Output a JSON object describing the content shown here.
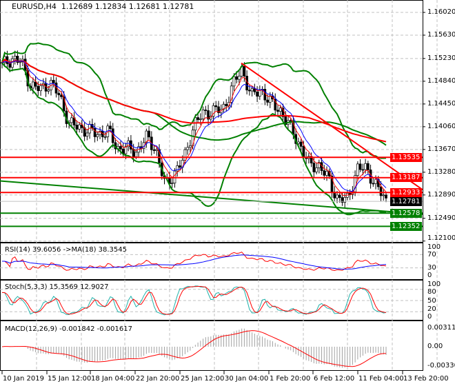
{
  "header": {
    "symbol": "EURUSD,H4",
    "open": "1.12689",
    "high": "1.12834",
    "low": "1.12681",
    "close": "1.12781"
  },
  "price_axis": [
    "1.16020",
    "1.15630",
    "1.15230",
    "1.14840",
    "1.14450",
    "1.14060",
    "1.13670",
    "1.13280",
    "1.12890",
    "1.12490",
    "1.12100"
  ],
  "levels": [
    {
      "value": "1.13535",
      "color": "#ff0000"
    },
    {
      "value": "1.13187",
      "color": "#ff0000"
    },
    {
      "value": "1.12933",
      "color": "#ff0000"
    },
    {
      "value": "1.12578",
      "color": "#008000"
    },
    {
      "value": "1.12352",
      "color": "#008000"
    }
  ],
  "current_price": {
    "value": "1.12781",
    "color": "#000000"
  },
  "rsi": {
    "label": "RSI(14) 39.6056  ->MA(18) 38.3545",
    "axis": [
      "100",
      "70",
      "30",
      "0"
    ]
  },
  "stoch": {
    "label": "Stoch(5,3,3) 15.3569 12.9027",
    "axis": [
      "100",
      "80",
      "50",
      "20",
      "0"
    ]
  },
  "macd": {
    "label": "MACD(12,26,9) -0.001842 -0.001617",
    "axis": [
      "0.00311",
      "0.00",
      "-0.003307"
    ]
  },
  "time_axis": [
    "10 Jan 2019",
    "15 Jan 12:00",
    "18 Jan 04:00",
    "22 Jan 20:00",
    "25 Jan 12:00",
    "30 Jan 04:00",
    "1 Feb 20:00",
    "6 Feb 12:00",
    "11 Feb 04:00",
    "13 Feb 20:00"
  ],
  "chart_data": {
    "type": "candlestick",
    "title": "EURUSD,H4",
    "ylim": [
      1.121,
      1.1602
    ],
    "close_path": [
      1.1511,
      1.1523,
      1.1517,
      1.1476,
      1.147,
      1.1482,
      1.1458,
      1.1411,
      1.1405,
      1.1399,
      1.1393,
      1.1399,
      1.1369,
      1.1369,
      1.1363,
      1.1387,
      1.1369,
      1.1304,
      1.1328,
      1.1352,
      1.1411,
      1.1428,
      1.1434,
      1.1434,
      1.1476,
      1.1505,
      1.1458,
      1.147,
      1.1446,
      1.1434,
      1.1405,
      1.1375,
      1.134,
      1.134,
      1.1316,
      1.1281,
      1.1281,
      1.1334,
      1.1334,
      1.1304,
      1.1278
    ],
    "trendlines": [
      {
        "color": "#ff0000",
        "from": [
          "30 Jan 04:00",
          1.1515
        ],
        "to": [
          "13 Feb 20:00",
          1.1298
        ]
      },
      {
        "color": "#008000",
        "from": [
          "10 Jan 2019",
          1.1313
        ],
        "to": [
          "13 Feb 20:00",
          1.1256
        ]
      }
    ],
    "colors": {
      "bull": "#ffffff",
      "bear": "#000000",
      "bands": "#008000",
      "ma_slow": "#ff0000",
      "ma_fast_red": "#ff0000",
      "ma_fast_blue": "#0000ff"
    }
  }
}
